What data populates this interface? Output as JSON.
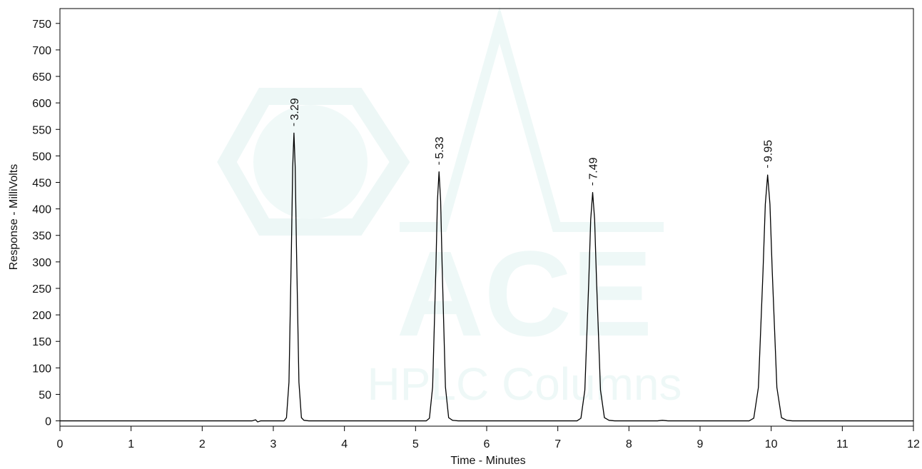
{
  "chart_data": {
    "type": "line",
    "xlabel": "Time - Minutes",
    "ylabel": "Response - MilliVolts",
    "watermark": {
      "text": "ACE",
      "subtext": "HPLC Columns"
    },
    "color": "#000000",
    "xlim": [
      0,
      12
    ],
    "xticks": [
      0,
      1,
      2,
      3,
      4,
      5,
      6,
      7,
      8,
      9,
      10,
      11,
      12
    ],
    "ylim": [
      -10,
      778
    ],
    "yticks": [
      0,
      50,
      100,
      150,
      200,
      250,
      300,
      350,
      400,
      450,
      500,
      550,
      600,
      650,
      700,
      750
    ],
    "x": [
      0,
      2.7,
      2.75,
      2.78,
      2.82,
      3.15,
      3.185,
      3.22,
      3.255,
      3.2725,
      3.29,
      3.3075,
      3.325,
      3.36,
      3.395,
      3.43,
      3.5,
      5.15,
      5.195,
      5.24,
      5.285,
      5.3075,
      5.33,
      5.3525,
      5.375,
      5.42,
      5.465,
      5.52,
      5.6,
      7.27,
      7.325,
      7.38,
      7.435,
      7.4625,
      7.49,
      7.5175,
      7.545,
      7.6,
      7.655,
      7.72,
      7.8,
      8.4,
      8.47,
      8.55,
      9.69,
      9.755,
      9.82,
      9.885,
      9.9175,
      9.95,
      9.9825,
      10.015,
      10.08,
      10.145,
      10.22,
      10.3,
      12
    ],
    "values": [
      0,
      0,
      2,
      -2,
      0,
      0,
      6,
      73,
      330,
      479,
      543,
      479,
      330,
      73,
      6,
      1,
      0,
      0,
      5,
      64,
      285,
      415,
      470,
      415,
      285,
      64,
      6,
      1,
      0,
      0,
      5,
      58,
      262,
      380,
      431,
      380,
      262,
      58,
      6,
      1,
      0,
      0,
      1,
      0,
      0,
      5,
      63,
      282,
      409,
      464,
      409,
      282,
      63,
      6,
      1,
      0,
      0
    ],
    "annotations": [
      {
        "text": "3.29",
        "x": 3.29,
        "y": 543
      },
      {
        "text": "5.33",
        "x": 5.33,
        "y": 470
      },
      {
        "text": "7.49",
        "x": 7.49,
        "y": 431
      },
      {
        "text": "9.95",
        "x": 9.95,
        "y": 464
      }
    ]
  }
}
